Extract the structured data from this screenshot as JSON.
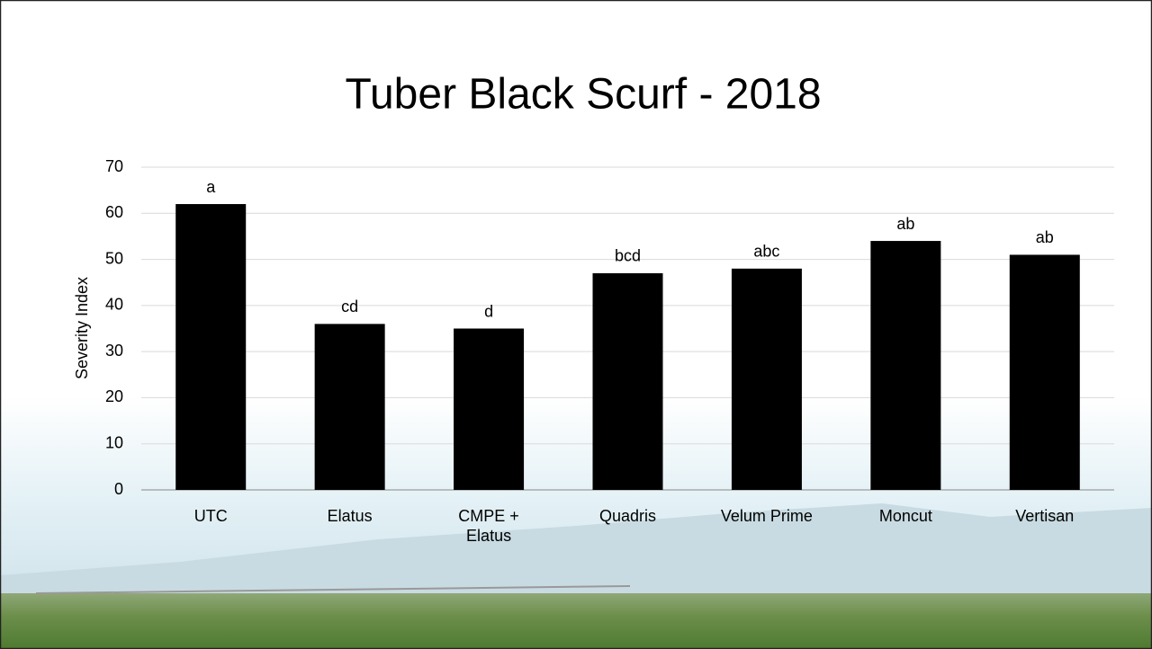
{
  "chart_data": {
    "type": "bar",
    "title": "Tuber Black Scurf - 2018",
    "y_label": "Severity Index",
    "categories": [
      "UTC",
      "Elatus",
      "CMPE + Elatus",
      "Quadris",
      "Velum Prime",
      "Moncut",
      "Vertisan"
    ],
    "values": [
      62,
      36,
      35,
      47,
      48,
      54,
      51
    ],
    "bar_labels": [
      "a",
      "cd",
      "d",
      "bcd",
      "abc",
      "ab",
      "ab"
    ],
    "color": "#000000",
    "ylim": [
      0,
      70
    ],
    "yticks": [
      0,
      10,
      20,
      30,
      40,
      50,
      60,
      70
    ],
    "grid": true
  }
}
